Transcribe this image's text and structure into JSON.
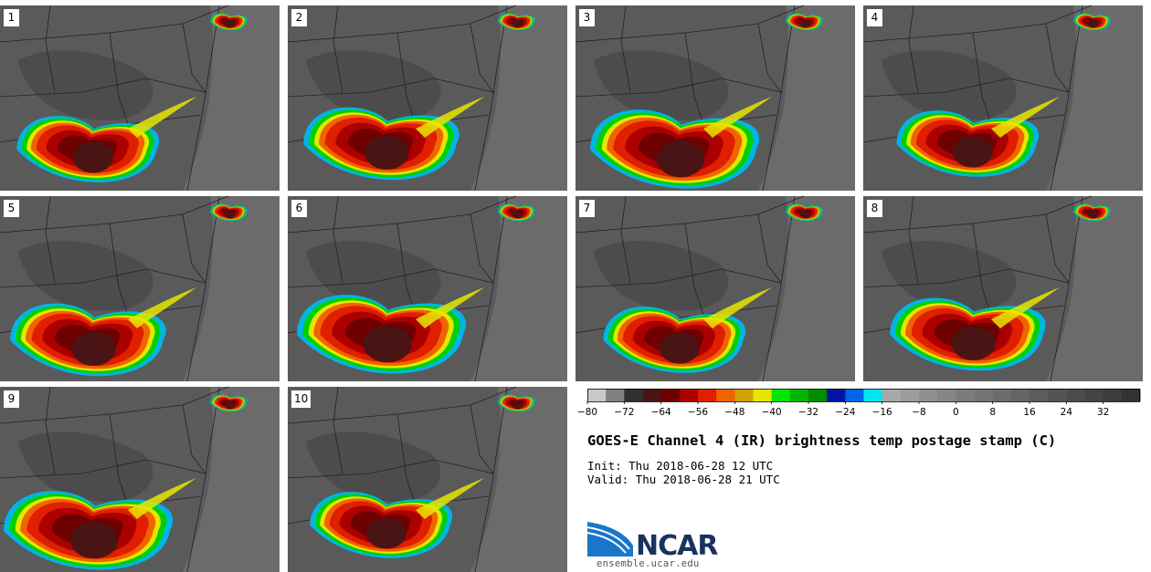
{
  "panels": [
    "1",
    "2",
    "3",
    "4",
    "5",
    "6",
    "7",
    "8",
    "9",
    "10"
  ],
  "title": "GOES-E Channel 4 (IR) brightness temp postage stamp (C)",
  "init": "Init: Thu 2018-06-28 12 UTC",
  "valid": "Valid: Thu 2018-06-28 21 UTC",
  "logo": {
    "name": "NCAR",
    "url": "ensemble.ucar.edu"
  },
  "chart_data": {
    "type": "heatmap",
    "title": "GOES-E Channel 4 (IR) brightness temp postage stamp (C)",
    "units": "C",
    "colorbar": {
      "range": [
        -80,
        40
      ],
      "step": 4,
      "tick_values": [
        -80,
        -72,
        -64,
        -56,
        -48,
        -40,
        -32,
        -24,
        -16,
        -8,
        0,
        8,
        16,
        24,
        32
      ],
      "tick_labels": [
        "−80",
        "−72",
        "−64",
        "−56",
        "−48",
        "−40",
        "−32",
        "−24",
        "−16",
        "−8",
        "0",
        "8",
        "16",
        "24",
        "32"
      ],
      "colors": [
        "#c8c8c8",
        "#808080",
        "#303030",
        "#4a1414",
        "#6e0000",
        "#aa0000",
        "#e01e00",
        "#f06400",
        "#d2a000",
        "#e6e600",
        "#00e600",
        "#00b400",
        "#008c00",
        "#0014a0",
        "#0064e6",
        "#00e6f0",
        "#a8a8a8",
        "#9c9c9c",
        "#909090",
        "#868686",
        "#7c7c7c",
        "#747474",
        "#6c6c6c",
        "#646464",
        "#5c5c5c",
        "#545454",
        "#4c4c4c",
        "#444444",
        "#3c3c3c",
        "#323232"
      ]
    }
  }
}
